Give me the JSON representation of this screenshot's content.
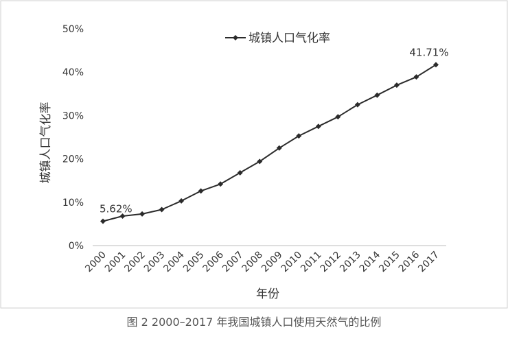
{
  "caption": "图 2 2000–2017 年我国城镇人口使用天然气的比例",
  "chart_data": {
    "type": "line",
    "title": "",
    "xlabel": "年份",
    "ylabel": "城镇人口气化率",
    "ylim": [
      0,
      50
    ],
    "y_ticks": [
      "0%",
      "10%",
      "20%",
      "30%",
      "40%",
      "50%"
    ],
    "grid": false,
    "legend_position": "top",
    "line_color": "#2b2b2b",
    "x": [
      "2000",
      "2001",
      "2002",
      "2003",
      "2004",
      "2005",
      "2006",
      "2007",
      "2008",
      "2009",
      "2010",
      "2011",
      "2012",
      "2013",
      "2014",
      "2015",
      "2016",
      "2017"
    ],
    "series": [
      {
        "name": "城镇人口气化率",
        "values": [
          5.62,
          6.8,
          7.3,
          8.3,
          10.3,
          12.6,
          14.2,
          16.8,
          19.4,
          22.5,
          25.3,
          27.5,
          29.7,
          32.5,
          34.7,
          37.0,
          38.9,
          41.71
        ]
      }
    ],
    "data_labels": [
      {
        "index": 0,
        "text": "5.62%"
      },
      {
        "index": 17,
        "text": "41.71%"
      }
    ]
  }
}
